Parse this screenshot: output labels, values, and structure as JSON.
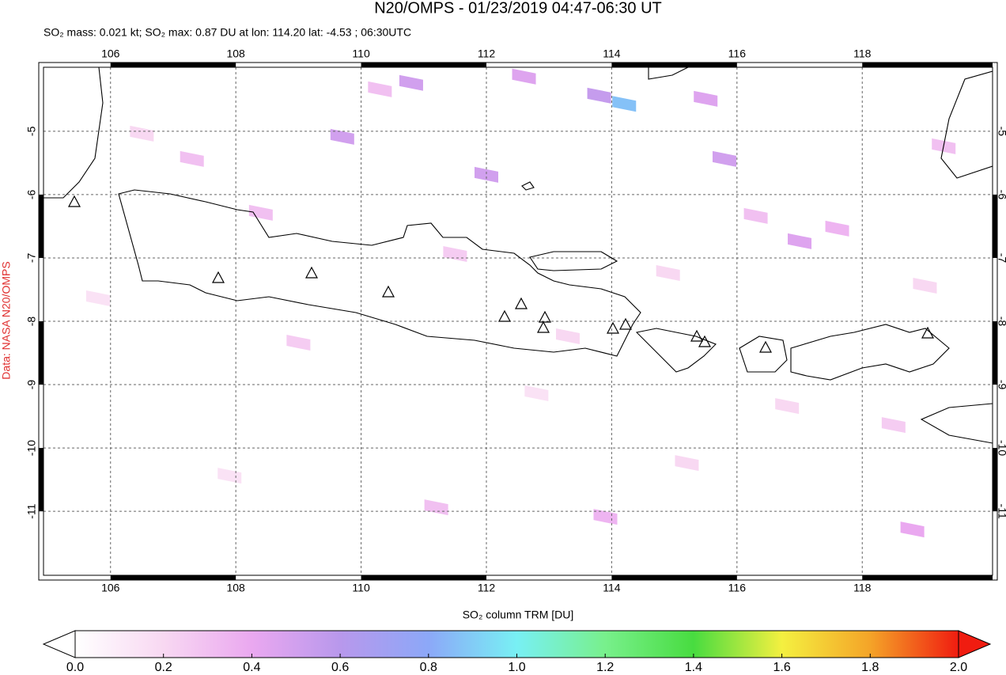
{
  "chart_data": {
    "type": "map",
    "title": "N20/OMPS - 01/23/2019 04:47-06:30 UT",
    "subtitle": "SO₂ mass: 0.021 kt; SO₂ max: 0.87 DU at lon: 114.20 lat: -4.53 ; 06:30UTC",
    "credit": "Data: NASA N20/OMPS",
    "xlim": [
      104.93,
      120.08
    ],
    "ylim": [
      -12.01,
      -3.99
    ],
    "xticks": [
      106,
      108,
      110,
      112,
      114,
      116,
      118
    ],
    "yticks": [
      -5,
      -6,
      -7,
      -8,
      -9,
      -10,
      -11
    ],
    "grid": true,
    "pixels": {
      "lon": [
        114.2,
        113.8,
        115.5,
        110.8,
        112.6,
        109.7,
        107.3,
        115.8,
        117.0,
        118.8,
        113.9,
        110.3,
        106.5,
        112.0,
        116.3,
        117.6,
        108.4,
        111.5,
        114.9,
        119.0,
        105.8,
        109.0,
        113.3,
        116.8,
        118.5,
        107.9,
        111.2,
        115.2,
        112.8,
        119.3
      ],
      "lat": [
        -4.53,
        -4.4,
        -4.45,
        -4.2,
        -4.1,
        -5.05,
        -5.4,
        -5.4,
        -6.7,
        -11.25,
        -11.05,
        -4.3,
        -5.0,
        -5.65,
        -6.3,
        -6.5,
        -6.25,
        -6.9,
        -7.2,
        -7.4,
        -7.6,
        -8.3,
        -8.2,
        -9.3,
        -9.6,
        -10.4,
        -10.9,
        -10.2,
        -9.1,
        -5.2
      ],
      "values": [
        0.87,
        0.55,
        0.45,
        0.5,
        0.45,
        0.5,
        0.3,
        0.5,
        0.45,
        0.4,
        0.35,
        0.3,
        0.2,
        0.5,
        0.3,
        0.35,
        0.3,
        0.25,
        0.2,
        0.2,
        0.15,
        0.25,
        0.2,
        0.2,
        0.25,
        0.15,
        0.3,
        0.2,
        0.15,
        0.3
      ]
    },
    "colorbar": {
      "label": "SO₂ column TRM [DU]",
      "lim": [
        0,
        2
      ],
      "ticks": [
        {
          "value": 0,
          "label": "0.0"
        },
        {
          "value": 0.2,
          "label": "0.2"
        },
        {
          "value": 0.4,
          "label": "0.4"
        },
        {
          "value": 0.6,
          "label": "0.6"
        },
        {
          "value": 0.8,
          "label": "0.8"
        },
        {
          "value": 1,
          "label": "1.0"
        },
        {
          "value": 1.2,
          "label": "1.2"
        },
        {
          "value": 1.4,
          "label": "1.4"
        },
        {
          "value": 1.6,
          "label": "1.6"
        },
        {
          "value": 1.8,
          "label": "1.8"
        },
        {
          "value": 2,
          "label": "2.0"
        }
      ],
      "colors": [
        "#ffffff",
        "#f8d8f2",
        "#eaa8f0",
        "#b898ec",
        "#8ca8f8",
        "#78f0f4",
        "#78f08c",
        "#48dc40",
        "#f4f040",
        "#f4a428",
        "#f01c10"
      ]
    }
  }
}
